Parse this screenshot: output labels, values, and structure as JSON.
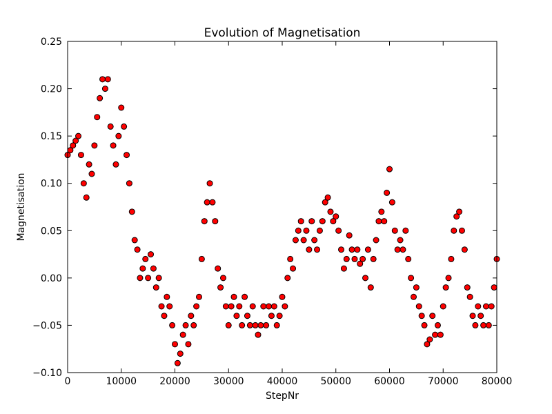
{
  "chart_data": {
    "type": "scatter",
    "title": "Evolution of Magnetisation",
    "x_label": "StepNr",
    "y_label": "Magnetisation",
    "color": "#ff0000",
    "edge_color": "#000000",
    "x": [
      0,
      500,
      1000,
      1500,
      2000,
      2500,
      3000,
      3500,
      4000,
      4500,
      5000,
      5500,
      6000,
      6500,
      7000,
      7500,
      8000,
      8500,
      9000,
      9500,
      10000,
      10500,
      11000,
      11500,
      12000,
      12500,
      13000,
      13500,
      14000,
      14500,
      15000,
      15500,
      16000,
      16500,
      17000,
      17500,
      18000,
      18500,
      19000,
      19500,
      20000,
      20500,
      21000,
      21500,
      22000,
      22500,
      23000,
      23500,
      24000,
      24500,
      25000,
      25500,
      26000,
      26500,
      27000,
      27500,
      28000,
      28500,
      29000,
      29500,
      30000,
      30500,
      31000,
      31500,
      32000,
      32500,
      33000,
      33500,
      34000,
      34500,
      35000,
      35500,
      36000,
      36500,
      37000,
      37500,
      38000,
      38500,
      39000,
      39500,
      40000,
      40500,
      41000,
      41500,
      42000,
      42500,
      43000,
      43500,
      44000,
      44500,
      45000,
      45500,
      46000,
      46500,
      47000,
      47500,
      48000,
      48500,
      49000,
      49500,
      50000,
      50500,
      51000,
      51500,
      52000,
      52500,
      53000,
      53500,
      54000,
      54500,
      55000,
      55500,
      56000,
      56500,
      57000,
      57500,
      58000,
      58500,
      59000,
      59500,
      60000,
      60500,
      61000,
      61500,
      62000,
      62500,
      63000,
      63500,
      64000,
      64500,
      65000,
      65500,
      66000,
      66500,
      67000,
      67500,
      68000,
      68500,
      69000,
      69500,
      70000,
      70500,
      71000,
      71500,
      72000,
      72500,
      73000,
      73500,
      74000,
      74500,
      75000,
      75500,
      76000,
      76500,
      77000,
      77500,
      78000,
      78500,
      79000,
      79500,
      80000
    ],
    "values": [
      0.13,
      0.135,
      0.14,
      0.145,
      0.15,
      0.13,
      0.1,
      0.085,
      0.12,
      0.11,
      0.14,
      0.17,
      0.19,
      0.21,
      0.2,
      0.21,
      0.16,
      0.14,
      0.12,
      0.15,
      0.18,
      0.16,
      0.13,
      0.1,
      0.07,
      0.04,
      0.03,
      0.0,
      0.01,
      0.02,
      0.0,
      0.025,
      0.01,
      -0.01,
      0.0,
      -0.03,
      -0.04,
      -0.02,
      -0.03,
      -0.05,
      -0.07,
      -0.09,
      -0.08,
      -0.06,
      -0.05,
      -0.07,
      -0.04,
      -0.05,
      -0.03,
      -0.02,
      0.02,
      0.06,
      0.08,
      0.1,
      0.08,
      0.06,
      0.01,
      -0.01,
      0.0,
      -0.03,
      -0.05,
      -0.03,
      -0.02,
      -0.04,
      -0.03,
      -0.05,
      -0.02,
      -0.04,
      -0.05,
      -0.03,
      -0.05,
      -0.06,
      -0.05,
      -0.03,
      -0.05,
      -0.03,
      -0.04,
      -0.03,
      -0.05,
      -0.04,
      -0.02,
      -0.03,
      0.0,
      0.02,
      0.01,
      0.04,
      0.05,
      0.06,
      0.04,
      0.05,
      0.03,
      0.06,
      0.04,
      0.03,
      0.05,
      0.06,
      0.08,
      0.085,
      0.07,
      0.06,
      0.065,
      0.05,
      0.03,
      0.01,
      0.02,
      0.045,
      0.03,
      0.02,
      0.03,
      0.015,
      0.02,
      0.0,
      0.03,
      -0.01,
      0.02,
      0.04,
      0.06,
      0.07,
      0.06,
      0.09,
      0.115,
      0.08,
      0.05,
      0.03,
      0.04,
      0.03,
      0.05,
      0.02,
      0.0,
      -0.02,
      -0.01,
      -0.03,
      -0.04,
      -0.05,
      -0.07,
      -0.065,
      -0.04,
      -0.06,
      -0.05,
      -0.06,
      -0.03,
      -0.01,
      0.0,
      0.02,
      0.05,
      0.065,
      0.07,
      0.05,
      0.03,
      -0.01,
      -0.02,
      -0.04,
      -0.05,
      -0.03,
      -0.04,
      -0.05,
      -0.03,
      -0.05,
      -0.03,
      -0.01,
      0.02
    ],
    "xlim": [
      0,
      80000
    ],
    "xticks": [
      0,
      10000,
      20000,
      30000,
      40000,
      50000,
      60000,
      70000,
      80000
    ],
    "ylim": [
      -0.1,
      0.25
    ],
    "yticks": [
      {
        "value": -0.1,
        "label": "−0.10"
      },
      {
        "value": -0.05,
        "label": "−0.05"
      },
      {
        "value": 0,
        "label": "0.00"
      },
      0.05,
      {
        "value": 0.1,
        "label": "0.10"
      },
      0.15,
      {
        "value": 0.2,
        "label": "0.20"
      },
      0.25
    ]
  }
}
